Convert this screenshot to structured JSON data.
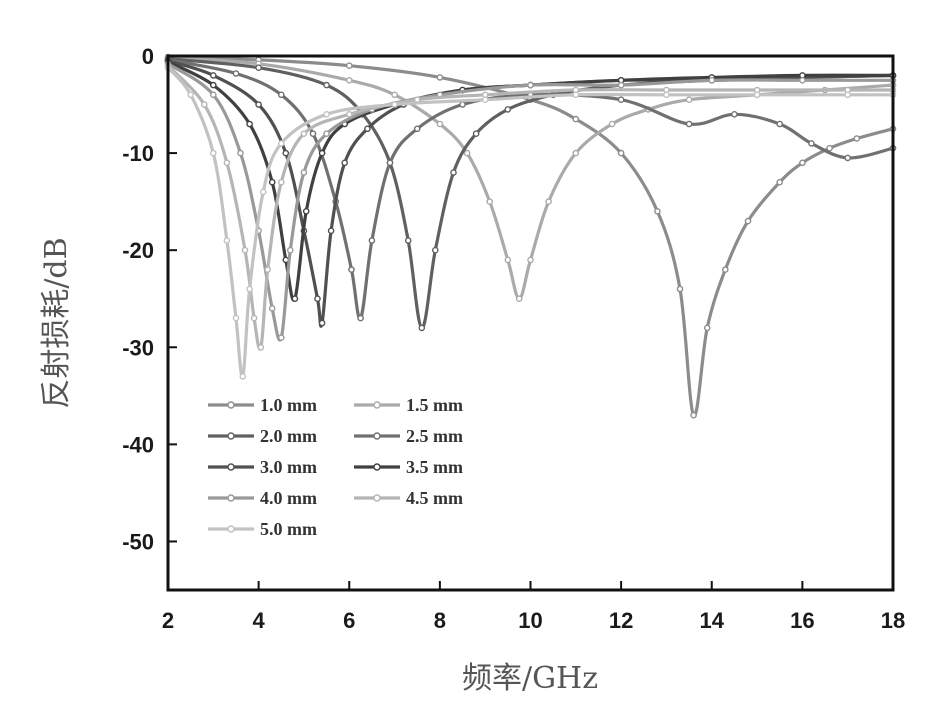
{
  "chart_data": {
    "type": "line",
    "title": "",
    "xlabel": "频率/GHz",
    "ylabel": "反射损耗/dB",
    "xlim": [
      2,
      18
    ],
    "ylim": [
      -55,
      0
    ],
    "xticks": [
      2,
      4,
      6,
      8,
      10,
      12,
      14,
      16,
      18
    ],
    "yticks": [
      0,
      -10,
      -20,
      -30,
      -40,
      -50
    ],
    "grid": false,
    "legend_position": "lower-left",
    "series": [
      {
        "name": "1.0 mm",
        "color": "#8c8c8c",
        "x": [
          2,
          4,
          6,
          8,
          10,
          11,
          12,
          12.8,
          13.3,
          13.6,
          13.9,
          14.3,
          14.8,
          15.5,
          16,
          16.6,
          17.2,
          18
        ],
        "y": [
          -0.1,
          -0.4,
          -1,
          -2.2,
          -4.5,
          -6.5,
          -10,
          -16,
          -24,
          -37,
          -28,
          -22,
          -17,
          -13,
          -11,
          -9.5,
          -8.5,
          -7.5
        ]
      },
      {
        "name": "1.5 mm",
        "color": "#aaaaaa",
        "x": [
          2,
          4,
          6,
          7,
          8,
          8.6,
          9.1,
          9.5,
          9.75,
          10,
          10.4,
          11,
          11.8,
          12.6,
          13.5,
          15,
          16.5,
          18
        ],
        "y": [
          -0.2,
          -0.8,
          -2.5,
          -4,
          -7,
          -10,
          -15,
          -21,
          -25,
          -21,
          -15,
          -10,
          -7,
          -5.5,
          -4.5,
          -4,
          -3.5,
          -3
        ]
      },
      {
        "name": "2.0 mm",
        "color": "#606060",
        "x": [
          2,
          4,
          5.5,
          6.3,
          6.9,
          7.3,
          7.6,
          7.9,
          8.3,
          8.8,
          9.5,
          10.5,
          12,
          14,
          16,
          18
        ],
        "y": [
          -0.3,
          -1.2,
          -3,
          -6,
          -11,
          -19,
          -28,
          -20,
          -12,
          -8,
          -5.5,
          -4,
          -3,
          -2.5,
          -2.2,
          -2
        ]
      },
      {
        "name": "2.5 mm",
        "color": "#707070",
        "x": [
          2,
          3.5,
          4.5,
          5.2,
          5.7,
          6.05,
          6.25,
          6.5,
          6.9,
          7.5,
          8.5,
          10,
          12,
          13.5,
          14.5,
          15.5,
          16.2,
          17,
          18
        ],
        "y": [
          -0.4,
          -1.8,
          -4,
          -8,
          -15,
          -22,
          -27,
          -19,
          -11,
          -7.5,
          -5,
          -4,
          -4.5,
          -7,
          -6,
          -7,
          -9,
          -10.5,
          -9.5
        ]
      },
      {
        "name": "3.0 mm",
        "color": "#505050",
        "x": [
          2,
          3,
          4,
          4.6,
          5,
          5.3,
          5.4,
          5.6,
          5.9,
          6.4,
          7.2,
          8.5,
          10,
          12,
          14,
          16,
          18
        ],
        "y": [
          -0.5,
          -2,
          -5,
          -10,
          -18,
          -25,
          -27.5,
          -18,
          -11,
          -7.5,
          -5,
          -3.5,
          -3,
          -2.5,
          -2.5,
          -2.2,
          -2
        ]
      },
      {
        "name": "3.5 mm",
        "color": "#404040",
        "x": [
          2,
          3,
          3.8,
          4.3,
          4.6,
          4.8,
          5.05,
          5.4,
          5.9,
          7,
          8.5,
          10,
          12,
          14,
          16,
          18
        ],
        "y": [
          -0.6,
          -3,
          -7,
          -13,
          -21,
          -25,
          -16,
          -10,
          -7,
          -5,
          -3.5,
          -3,
          -2.5,
          -2.2,
          -2,
          -2
        ]
      },
      {
        "name": "4.0 mm",
        "color": "#999999",
        "x": [
          2,
          3,
          3.6,
          4,
          4.3,
          4.5,
          4.7,
          5,
          5.5,
          6.5,
          8,
          10,
          12,
          14,
          16,
          18
        ],
        "y": [
          -0.8,
          -4,
          -10,
          -18,
          -26,
          -29,
          -20,
          -12,
          -8,
          -5.5,
          -4,
          -3,
          -3,
          -2.5,
          -2.5,
          -2.5
        ]
      },
      {
        "name": "4.5 mm",
        "color": "#b5b5b5",
        "x": [
          2,
          2.8,
          3.3,
          3.7,
          3.9,
          4.05,
          4.2,
          4.5,
          5,
          6,
          7.5,
          9,
          11,
          13,
          15,
          17,
          18
        ],
        "y": [
          -1,
          -5,
          -11,
          -20,
          -27,
          -30,
          -22,
          -13,
          -8,
          -6,
          -4.5,
          -4,
          -3.5,
          -3.5,
          -3.5,
          -3.5,
          -3.5
        ]
      },
      {
        "name": "5.0 mm",
        "color": "#c2c2c2",
        "x": [
          2,
          2.5,
          3,
          3.3,
          3.5,
          3.65,
          3.8,
          4.1,
          4.5,
          5.5,
          7,
          9,
          11,
          13,
          15,
          17,
          18
        ],
        "y": [
          -1.2,
          -4,
          -10,
          -19,
          -27,
          -33,
          -24,
          -14,
          -9,
          -6,
          -5,
          -4.5,
          -4,
          -4,
          -4,
          -4,
          -4
        ]
      }
    ]
  }
}
